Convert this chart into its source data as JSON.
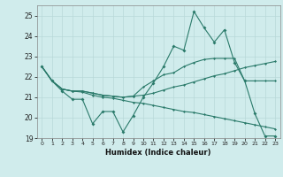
{
  "title": "",
  "xlabel": "Humidex (Indice chaleur)",
  "x": [
    0,
    1,
    2,
    3,
    4,
    5,
    6,
    7,
    8,
    9,
    10,
    11,
    12,
    13,
    14,
    15,
    16,
    17,
    18,
    19,
    20,
    21,
    22,
    23
  ],
  "line1": [
    22.5,
    21.8,
    21.3,
    20.9,
    20.9,
    19.7,
    20.3,
    20.3,
    19.3,
    20.1,
    21.0,
    21.7,
    22.5,
    23.5,
    23.3,
    25.2,
    24.4,
    23.7,
    24.3,
    22.7,
    21.8,
    20.2,
    19.1,
    19.1
  ],
  "line2": [
    22.5,
    21.8,
    21.4,
    21.3,
    21.3,
    21.2,
    21.1,
    21.05,
    21.0,
    21.05,
    21.1,
    21.2,
    21.35,
    21.5,
    21.6,
    21.75,
    21.9,
    22.05,
    22.15,
    22.3,
    22.45,
    22.55,
    22.65,
    22.75
  ],
  "line3": [
    22.5,
    21.8,
    21.4,
    21.3,
    21.25,
    21.1,
    21.0,
    20.95,
    20.85,
    20.75,
    20.7,
    20.6,
    20.5,
    20.4,
    20.3,
    20.25,
    20.15,
    20.05,
    19.95,
    19.85,
    19.75,
    19.65,
    19.55,
    19.45
  ],
  "line4": [
    22.5,
    21.8,
    21.4,
    21.3,
    21.3,
    21.2,
    21.1,
    21.05,
    21.0,
    21.05,
    21.5,
    21.8,
    22.1,
    22.2,
    22.5,
    22.7,
    22.85,
    22.9,
    22.9,
    22.9,
    21.8,
    21.8,
    21.8,
    21.8
  ],
  "line_color": "#2a7a6a",
  "bg_color": "#d0ecec",
  "grid_color": "#b8d8d8",
  "ylim": [
    19,
    25.5
  ],
  "xlim": [
    -0.5,
    23.5
  ],
  "yticks": [
    19,
    20,
    21,
    22,
    23,
    24,
    25
  ]
}
